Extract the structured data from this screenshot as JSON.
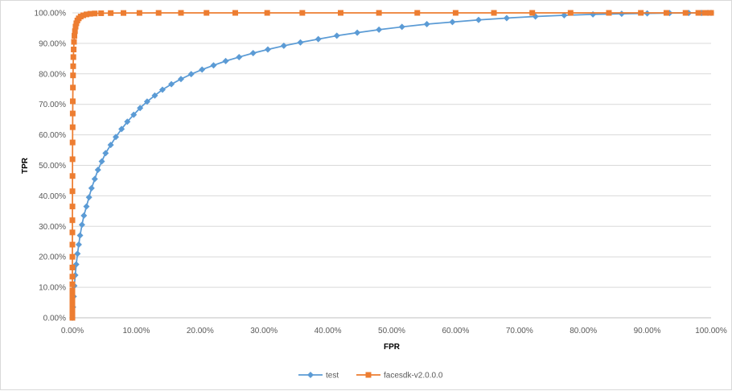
{
  "chart_data": {
    "type": "line",
    "title": "",
    "xlabel": "FPR",
    "ylabel": "TPR",
    "xlim": [
      0,
      100
    ],
    "ylim": [
      0,
      100
    ],
    "x_tick_labels": [
      "0.00%",
      "10.00%",
      "20.00%",
      "30.00%",
      "40.00%",
      "50.00%",
      "60.00%",
      "70.00%",
      "80.00%",
      "90.00%",
      "100.00%"
    ],
    "y_tick_labels": [
      "0.00%",
      "10.00%",
      "20.00%",
      "30.00%",
      "40.00%",
      "50.00%",
      "60.00%",
      "70.00%",
      "80.00%",
      "90.00%",
      "100.00%"
    ],
    "grid": "horizontal",
    "legend_position": "bottom",
    "series": [
      {
        "name": "test",
        "color": "#5b9bd5",
        "marker": "diamond",
        "x": [
          0,
          0.1,
          0.2,
          0.3,
          0.45,
          0.6,
          0.8,
          1.0,
          1.2,
          1.5,
          1.8,
          2.2,
          2.6,
          3.0,
          3.5,
          4.0,
          4.6,
          5.2,
          6.0,
          6.8,
          7.7,
          8.6,
          9.6,
          10.6,
          11.7,
          12.9,
          14.1,
          15.5,
          17.0,
          18.6,
          20.3,
          22.1,
          24.0,
          26.1,
          28.3,
          30.6,
          33.1,
          35.7,
          38.5,
          41.4,
          44.6,
          48.0,
          51.6,
          55.5,
          59.5,
          63.6,
          68.0,
          72.5,
          77.0,
          81.5,
          86.0,
          90.0,
          93.5,
          96.5,
          98.5,
          99.5,
          100
        ],
        "y": [
          0,
          3.5,
          7,
          10.5,
          14,
          17.5,
          21,
          24,
          27,
          30.5,
          33.5,
          36.5,
          39.5,
          42.5,
          45.5,
          48.5,
          51.3,
          54,
          56.7,
          59.3,
          61.9,
          64.3,
          66.6,
          68.8,
          70.9,
          72.9,
          74.8,
          76.6,
          78.3,
          79.9,
          81.4,
          82.8,
          84.2,
          85.5,
          86.8,
          88,
          89.2,
          90.3,
          91.4,
          92.5,
          93.5,
          94.5,
          95.4,
          96.3,
          97,
          97.7,
          98.3,
          98.8,
          99.2,
          99.5,
          99.7,
          99.85,
          99.92,
          99.96,
          99.98,
          99.99,
          100
        ]
      },
      {
        "name": "facesdk-v2.0.0.0",
        "color": "#ed7d31",
        "marker": "square",
        "x": [
          0,
          0,
          0,
          0,
          0,
          0,
          0,
          0,
          0,
          0,
          0,
          0,
          0,
          0,
          0.01,
          0.01,
          0.02,
          0.02,
          0.03,
          0.04,
          0.05,
          0.06,
          0.08,
          0.1,
          0.12,
          0.15,
          0.2,
          0.25,
          0.32,
          0.4,
          0.5,
          0.62,
          0.78,
          1.0,
          1.3,
          1.7,
          2.2,
          2.8,
          3.5,
          4.5,
          6.0,
          8.0,
          10.5,
          13.5,
          17.0,
          21.0,
          25.5,
          30.5,
          36.0,
          42.0,
          48.0,
          54.0,
          60.0,
          66.0,
          72.0,
          78.0,
          84.0,
          89.0,
          93.0,
          96.0,
          98.0,
          99.0,
          99.5,
          100
        ],
        "y": [
          0,
          1.5,
          3,
          4.5,
          6,
          7.5,
          9,
          11,
          13.5,
          16.5,
          20,
          24,
          28,
          32,
          36.5,
          41.5,
          46.5,
          52,
          57.5,
          62.5,
          67,
          71,
          75.5,
          79.5,
          82.5,
          85.5,
          88,
          90.5,
          92.5,
          94,
          95.5,
          96.6,
          97.5,
          98.2,
          98.8,
          99.2,
          99.5,
          99.7,
          99.8,
          99.88,
          99.93,
          99.96,
          99.98,
          99.99,
          100,
          100,
          100,
          100,
          100,
          100,
          100,
          100,
          100,
          100,
          100,
          100,
          100,
          100,
          100,
          100,
          100,
          100,
          100,
          100
        ]
      }
    ]
  }
}
